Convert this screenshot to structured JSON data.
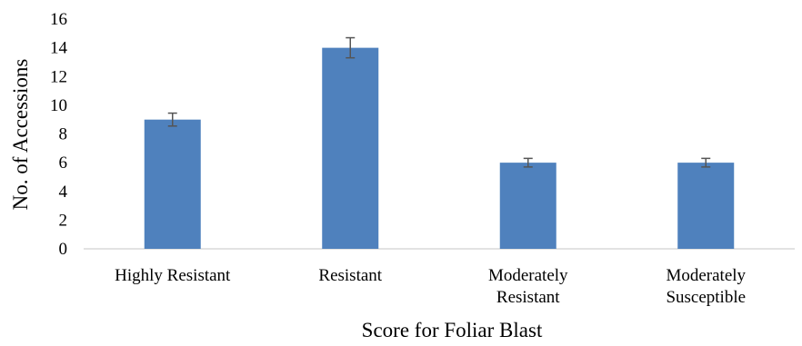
{
  "chart_data": {
    "type": "bar",
    "categories": [
      [
        "Highly Resistant"
      ],
      [
        "Resistant"
      ],
      [
        "Moderately",
        "Resistant"
      ],
      [
        "Moderately",
        "Susceptible"
      ]
    ],
    "values": [
      9,
      14,
      6,
      6
    ],
    "error": [
      0.45,
      0.7,
      0.3,
      0.3
    ],
    "yticks": [
      "0",
      "2",
      "4",
      "6",
      "8",
      "10",
      "12",
      "14",
      "16"
    ],
    "ylim": [
      0,
      16
    ],
    "xlabel": "Score for Foliar Blast",
    "ylabel": "No. of Accessions",
    "grid": false,
    "colors": {
      "bar": "#4f81bd",
      "error_bar": "#555555",
      "axis": "#d9d9d9"
    }
  }
}
